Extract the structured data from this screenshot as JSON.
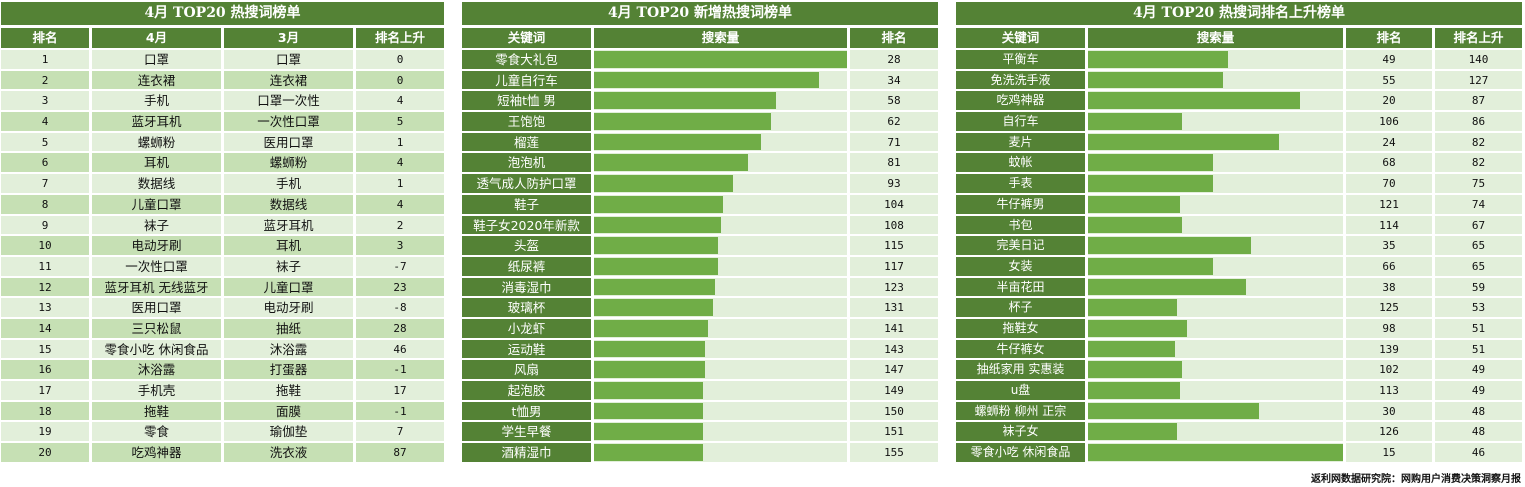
{
  "table1": {
    "title": "4月 TOP20 热搜词榜单",
    "headers": [
      "排名",
      "4月",
      "3月",
      "排名上升"
    ],
    "rows": [
      {
        "rank": "1",
        "apr": "口罩",
        "mar": "口罩",
        "rise": "0"
      },
      {
        "rank": "2",
        "apr": "连衣裙",
        "mar": "连衣裙",
        "rise": "0"
      },
      {
        "rank": "3",
        "apr": "手机",
        "mar": "口罩一次性",
        "rise": "4"
      },
      {
        "rank": "4",
        "apr": "蓝牙耳机",
        "mar": "一次性口罩",
        "rise": "5"
      },
      {
        "rank": "5",
        "apr": "螺蛳粉",
        "mar": "医用口罩",
        "rise": "1"
      },
      {
        "rank": "6",
        "apr": "耳机",
        "mar": "螺蛳粉",
        "rise": "4"
      },
      {
        "rank": "7",
        "apr": "数据线",
        "mar": "手机",
        "rise": "1"
      },
      {
        "rank": "8",
        "apr": "儿童口罩",
        "mar": "数据线",
        "rise": "4"
      },
      {
        "rank": "9",
        "apr": "袜子",
        "mar": "蓝牙耳机",
        "rise": "2"
      },
      {
        "rank": "10",
        "apr": "电动牙刷",
        "mar": "耳机",
        "rise": "3"
      },
      {
        "rank": "11",
        "apr": "一次性口罩",
        "mar": "袜子",
        "rise": "-7"
      },
      {
        "rank": "12",
        "apr": "蓝牙耳机 无线蓝牙",
        "mar": "儿童口罩",
        "rise": "23"
      },
      {
        "rank": "13",
        "apr": "医用口罩",
        "mar": "电动牙刷",
        "rise": "-8"
      },
      {
        "rank": "14",
        "apr": "三只松鼠",
        "mar": "抽纸",
        "rise": "28"
      },
      {
        "rank": "15",
        "apr": "零食小吃 休闲食品",
        "mar": "沐浴露",
        "rise": "46"
      },
      {
        "rank": "16",
        "apr": "沐浴露",
        "mar": "打蛋器",
        "rise": "-1"
      },
      {
        "rank": "17",
        "apr": "手机壳",
        "mar": "拖鞋",
        "rise": "17"
      },
      {
        "rank": "18",
        "apr": "拖鞋",
        "mar": "面膜",
        "rise": "-1"
      },
      {
        "rank": "19",
        "apr": "零食",
        "mar": "瑜伽垫",
        "rise": "7"
      },
      {
        "rank": "20",
        "apr": "吃鸡神器",
        "mar": "洗衣液",
        "rise": "87"
      }
    ]
  },
  "table2": {
    "title": "4月 TOP20 新增热搜词榜单",
    "headers": [
      "关键词",
      "搜索量",
      "排名"
    ],
    "rows": [
      {
        "keyword": "零食大礼包",
        "bar_pct": 100,
        "rank": "28"
      },
      {
        "keyword": "儿童自行车",
        "bar_pct": 89,
        "rank": "34"
      },
      {
        "keyword": "短袖t恤 男",
        "bar_pct": 72,
        "rank": "58"
      },
      {
        "keyword": "王饱饱",
        "bar_pct": 70,
        "rank": "62"
      },
      {
        "keyword": "榴莲",
        "bar_pct": 66,
        "rank": "71"
      },
      {
        "keyword": "泡泡机",
        "bar_pct": 61,
        "rank": "81"
      },
      {
        "keyword": "透气成人防护口罩",
        "bar_pct": 55,
        "rank": "93"
      },
      {
        "keyword": "鞋子",
        "bar_pct": 51,
        "rank": "104"
      },
      {
        "keyword": "鞋子女2020年新款",
        "bar_pct": 50,
        "rank": "108"
      },
      {
        "keyword": "头盔",
        "bar_pct": 49,
        "rank": "115"
      },
      {
        "keyword": "纸尿裤",
        "bar_pct": 49,
        "rank": "117"
      },
      {
        "keyword": "消毒湿巾",
        "bar_pct": 48,
        "rank": "123"
      },
      {
        "keyword": "玻璃杯",
        "bar_pct": 47,
        "rank": "131"
      },
      {
        "keyword": "小龙虾",
        "bar_pct": 45,
        "rank": "141"
      },
      {
        "keyword": "运动鞋",
        "bar_pct": 44,
        "rank": "143"
      },
      {
        "keyword": "风扇",
        "bar_pct": 44,
        "rank": "147"
      },
      {
        "keyword": "起泡胶",
        "bar_pct": 43,
        "rank": "149"
      },
      {
        "keyword": "t恤男",
        "bar_pct": 43,
        "rank": "150"
      },
      {
        "keyword": "学生早餐",
        "bar_pct": 43,
        "rank": "151"
      },
      {
        "keyword": "酒精湿巾",
        "bar_pct": 43,
        "rank": "155"
      }
    ]
  },
  "table3": {
    "title": "4月 TOP20 热搜词排名上升榜单",
    "headers": [
      "关键词",
      "搜索量",
      "排名",
      "排名上升"
    ],
    "rows": [
      {
        "keyword": "平衡车",
        "bar_pct": 55,
        "rank": "49",
        "rise": "140"
      },
      {
        "keyword": "免洗洗手液",
        "bar_pct": 53,
        "rank": "55",
        "rise": "127"
      },
      {
        "keyword": "吃鸡神器",
        "bar_pct": 83,
        "rank": "20",
        "rise": "87"
      },
      {
        "keyword": "自行车",
        "bar_pct": 37,
        "rank": "106",
        "rise": "86"
      },
      {
        "keyword": "麦片",
        "bar_pct": 75,
        "rank": "24",
        "rise": "82"
      },
      {
        "keyword": "蚊帐",
        "bar_pct": 49,
        "rank": "68",
        "rise": "82"
      },
      {
        "keyword": "手表",
        "bar_pct": 49,
        "rank": "70",
        "rise": "75"
      },
      {
        "keyword": "牛仔裤男",
        "bar_pct": 36,
        "rank": "121",
        "rise": "74"
      },
      {
        "keyword": "书包",
        "bar_pct": 37,
        "rank": "114",
        "rise": "67"
      },
      {
        "keyword": "完美日记",
        "bar_pct": 64,
        "rank": "35",
        "rise": "65"
      },
      {
        "keyword": "女装",
        "bar_pct": 49,
        "rank": "66",
        "rise": "65"
      },
      {
        "keyword": "半亩花田",
        "bar_pct": 62,
        "rank": "38",
        "rise": "59"
      },
      {
        "keyword": "杯子",
        "bar_pct": 35,
        "rank": "125",
        "rise": "53"
      },
      {
        "keyword": "拖鞋女",
        "bar_pct": 39,
        "rank": "98",
        "rise": "51"
      },
      {
        "keyword": "牛仔裤女",
        "bar_pct": 34,
        "rank": "139",
        "rise": "51"
      },
      {
        "keyword": "抽纸家用 实惠装",
        "bar_pct": 37,
        "rank": "102",
        "rise": "49"
      },
      {
        "keyword": "u盘",
        "bar_pct": 36,
        "rank": "113",
        "rise": "49"
      },
      {
        "keyword": "螺蛳粉 柳州 正宗",
        "bar_pct": 67,
        "rank": "30",
        "rise": "48"
      },
      {
        "keyword": "袜子女",
        "bar_pct": 35,
        "rank": "126",
        "rise": "48"
      },
      {
        "keyword": "零食小吃 休闲食品",
        "bar_pct": 100,
        "rank": "15",
        "rise": "46"
      }
    ]
  },
  "footer": "返利网数据研究院：网购用户消费决策洞察月报",
  "colors": {
    "dark_green": "#548235",
    "bar_green": "#70ad47",
    "light_row": "#e2efda",
    "mid_row": "#c6e0b4"
  }
}
